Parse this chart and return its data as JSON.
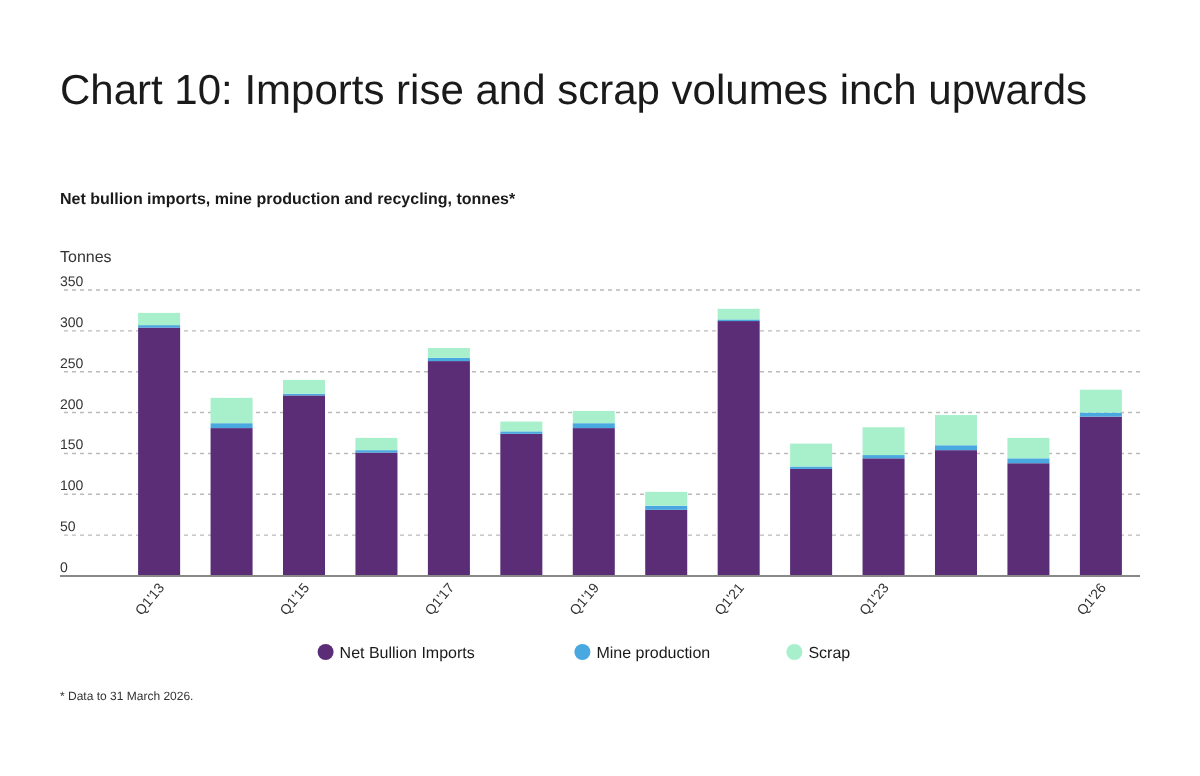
{
  "chart_data": {
    "type": "bar",
    "stacked": true,
    "title": "Chart 10: Imports rise and scrap volumes inch upwards",
    "subtitle": "Net bullion imports, mine production and recycling, tonnes*",
    "ylabel": "Tonnes",
    "categories": [
      "Q1'13",
      null,
      "Q1'15",
      null,
      "Q1'17",
      null,
      "Q1'19",
      null,
      "Q1'21",
      null,
      "Q1'23",
      null,
      null,
      "Q1'26"
    ],
    "series": [
      {
        "name": "Net Bullion Imports",
        "color": "#5b2d77",
        "values": [
          304,
          181,
          221,
          151,
          263,
          174,
          181,
          81,
          312,
          131,
          144,
          154,
          138,
          195
        ]
      },
      {
        "name": "Mine production",
        "color": "#4aa8e0",
        "values": [
          3,
          6,
          2,
          3,
          4,
          3,
          6,
          5,
          2,
          3,
          4,
          6,
          6,
          5
        ]
      },
      {
        "name": "Scrap",
        "color": "#a8f0cc",
        "values": [
          15,
          31,
          17,
          15,
          12,
          12,
          15,
          17,
          13,
          28,
          34,
          37,
          25,
          28
        ]
      }
    ],
    "ylim": [
      0,
      350
    ],
    "yticks": [
      0,
      50,
      100,
      150,
      200,
      250,
      300,
      350
    ],
    "grid": "y",
    "legend": "bottom",
    "annotations": [
      "* Data to 31 March 2026."
    ]
  }
}
